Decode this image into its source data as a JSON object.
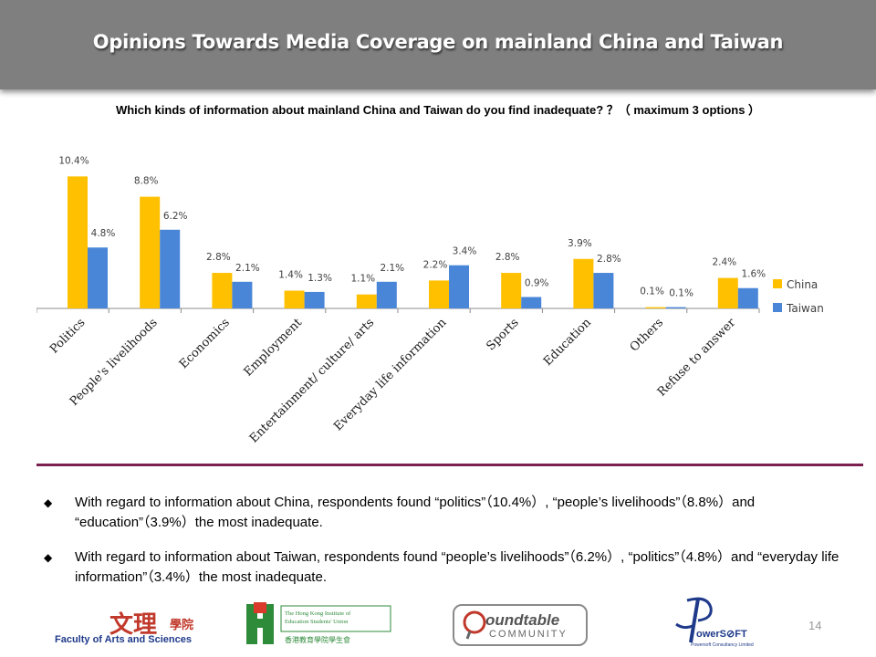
{
  "header": {
    "title": "Opinions Towards Media Coverage on mainland China and Taiwan"
  },
  "question": "Which kinds of information about mainland China and Taiwan do you find inadequate? ？（ maximum 3 options ）",
  "chart_data": {
    "type": "bar",
    "categories": [
      "Politics",
      "People's livelihoods",
      "Economics",
      "Employment",
      "Entertainment/ culture/ arts",
      "Everyday life information",
      "Sports",
      "Education",
      "Others",
      "Refuse to answer"
    ],
    "series": [
      {
        "name": "China",
        "color": "#ffc000",
        "values": [
          10.4,
          8.8,
          2.8,
          1.4,
          1.1,
          2.2,
          2.8,
          3.9,
          0.1,
          2.4
        ],
        "labels": [
          "10.4%",
          "8.8%",
          "2.8%",
          "1.4%",
          "1.1%",
          "2.2%",
          "2.8%",
          "3.9%",
          "0.1%",
          "2.4%"
        ]
      },
      {
        "name": "Taiwan",
        "color": "#4a86d8",
        "values": [
          4.8,
          6.2,
          2.1,
          1.3,
          2.1,
          3.4,
          0.9,
          2.8,
          0.1,
          1.6
        ],
        "labels": [
          "4.8%",
          "6.2%",
          "2.1%",
          "1.3%",
          "2.1%",
          "3.4%",
          "0.9%",
          "2.8%",
          "0.1%",
          "1.6%"
        ]
      }
    ],
    "ylim": [
      0,
      11
    ],
    "legend": "right",
    "grid": false
  },
  "bullets": [
    "With regard to information about China, respondents found “politics”（10.4%）, “people’s livelihoods”（8.8%）and “education”（3.9%）the most inadequate.",
    "With regard to information about Taiwan, respondents found “people’s livelihoods”（6.2%）, “politics”（4.8%）and “everyday life information”（3.4%）the most inadequate."
  ],
  "footer": {
    "page_number": "14",
    "logos": {
      "faculty_cn": "文理",
      "faculty_cn2": "學院",
      "faculty_en": "Faculty of Arts and Sciences",
      "hkies_en": "The Hong Kong Institute of Education Students' Union",
      "hkies_cn": "香港教育學院學生會",
      "roundtable_word": "oundtable",
      "roundtable_sub": "COMMUNITY",
      "powersoft_word": "owerS⊘FT",
      "powersoft_sub": "Powersoft Consultancy Limited"
    }
  }
}
